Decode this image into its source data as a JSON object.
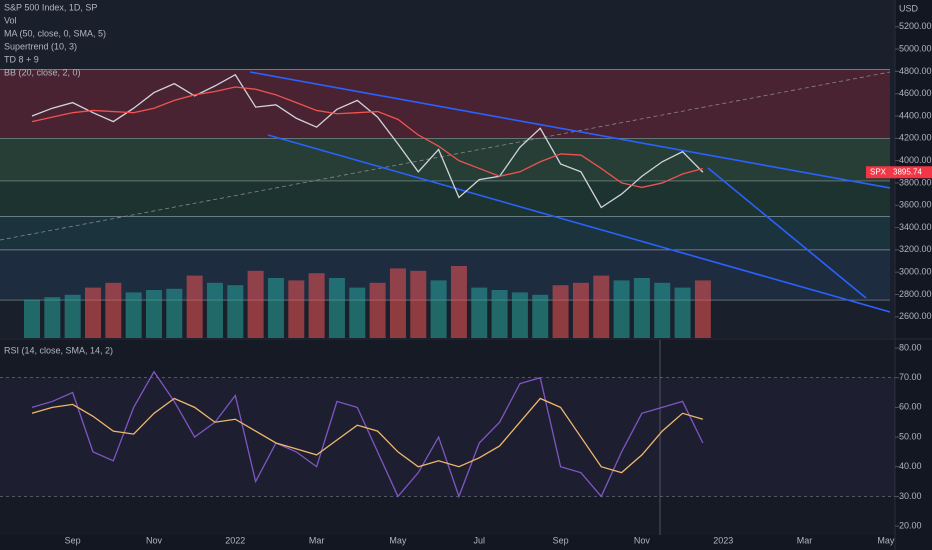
{
  "chart_data": [
    {
      "type": "line",
      "title": "S&P 500 Index, 1D, SP",
      "annotations": [
        "Supertrend (10, 3)",
        "TD 8 + 9",
        "BB (20, close, 2, 0)"
      ],
      "currency": "USD",
      "symbol": "SPX",
      "last_price_label": "3895.74",
      "categories": [
        null,
        null,
        "Sep",
        null,
        null,
        null,
        "Nov",
        null,
        null,
        null,
        "2022",
        null,
        null,
        null,
        "Mar",
        null,
        null,
        null,
        "May",
        null,
        null,
        null,
        "Jul",
        null,
        null,
        null,
        "Sep",
        null,
        null,
        null,
        "Nov",
        null,
        null,
        null,
        "2023",
        null,
        null,
        null,
        "Mar",
        null,
        null,
        null,
        "May"
      ],
      "series": [
        {
          "name": "S&P 500 Index, 1D, SP",
          "color": "#d1d4dc",
          "values": [
            4400,
            4470,
            4520,
            4430,
            4350,
            4470,
            4610,
            4690,
            4580,
            4670,
            4770,
            4480,
            4500,
            4380,
            4300,
            4460,
            4540,
            4390,
            4150,
            3900,
            4100,
            3670,
            3830,
            3860,
            4120,
            4290,
            3970,
            3900,
            3580,
            3700,
            3860,
            3990,
            4080,
            3895.74,
            null,
            null,
            null,
            null,
            null,
            null,
            null,
            null,
            null
          ]
        },
        {
          "name": "MA (50, close, 0, SMA, 5)",
          "color": "#ef5350",
          "values": [
            4350,
            4390,
            4430,
            4450,
            4440,
            4430,
            4470,
            4540,
            4590,
            4620,
            4660,
            4640,
            4590,
            4520,
            4450,
            4420,
            4430,
            4440,
            4370,
            4230,
            4130,
            4000,
            3930,
            3860,
            3900,
            3990,
            4060,
            4050,
            3930,
            3800,
            3760,
            3800,
            3880,
            3930,
            null,
            null,
            null,
            null,
            null,
            null,
            null,
            null,
            null
          ]
        }
      ],
      "volume": {
        "name": "Vol",
        "up_color": "#26a69a",
        "down_color": "#ef5350",
        "values": [
          3.2,
          3.4,
          3.6,
          4.2,
          4.6,
          3.8,
          4.0,
          4.1,
          5.2,
          4.6,
          4.4,
          5.6,
          5.0,
          4.8,
          5.4,
          5.0,
          4.2,
          4.6,
          5.8,
          5.6,
          4.8,
          6.0,
          4.2,
          4.0,
          3.8,
          3.6,
          4.4,
          4.6,
          5.2,
          4.8,
          5.0,
          4.6,
          4.2,
          4.8,
          null,
          null,
          null,
          null,
          null,
          null,
          null,
          null,
          null
        ]
      },
      "levels": [
        4818,
        4200,
        3818,
        3500,
        3200,
        2750
      ],
      "ylim": [
        2410,
        5440
      ],
      "yticks": [
        {
          "value": 5200,
          "label": "5200.00"
        },
        {
          "value": 5000,
          "label": "5000.00"
        },
        {
          "value": 4800,
          "label": "4800.00"
        },
        {
          "value": 4600,
          "label": "4600.00"
        },
        {
          "value": 4400,
          "label": "4400.00"
        },
        {
          "value": 4200,
          "label": "4200.00"
        },
        {
          "value": 4000,
          "label": "4000.00"
        },
        {
          "value": 3800,
          "label": "3800.00"
        },
        {
          "value": 3600,
          "label": "3600.00"
        },
        {
          "value": 3400,
          "label": "3400.00"
        },
        {
          "value": 3200,
          "label": "3200.00"
        },
        {
          "value": 3000,
          "label": "3000.00"
        },
        {
          "value": 2800,
          "label": "2800.00"
        },
        {
          "value": 2600,
          "label": "2600.00"
        }
      ]
    },
    {
      "type": "line",
      "series": [
        {
          "name": "RSI (14, close, SMA, 14, 2)",
          "color": "#7e57c2",
          "values": [
            60,
            62,
            65,
            45,
            42,
            60,
            72,
            62,
            50,
            55,
            64,
            35,
            48,
            45,
            40,
            62,
            60,
            45,
            30,
            38,
            50,
            30,
            48,
            55,
            68,
            70,
            40,
            38,
            30,
            45,
            58,
            60,
            62,
            48,
            null,
            null,
            null,
            null,
            null,
            null,
            null,
            null,
            null
          ]
        },
        {
          "color": "#f0b86b",
          "values": [
            58,
            60,
            61,
            57,
            52,
            51,
            58,
            63,
            60,
            55,
            56,
            52,
            48,
            46,
            44,
            49,
            54,
            52,
            45,
            40,
            42,
            40,
            43,
            47,
            55,
            63,
            60,
            50,
            40,
            38,
            44,
            52,
            58,
            56,
            null,
            null,
            null,
            null,
            null,
            null,
            null,
            null,
            null
          ]
        }
      ],
      "ylim": [
        17,
        82.7
      ],
      "bands": [
        70,
        30
      ],
      "yticks": [
        {
          "value": 80,
          "label": "80.00"
        },
        {
          "value": 70,
          "label": "70.00"
        },
        {
          "value": 60,
          "label": "60.00"
        },
        {
          "value": 50,
          "label": "50.00"
        },
        {
          "value": 40,
          "label": "40.00"
        },
        {
          "value": 30,
          "label": "30.00"
        },
        {
          "value": 20,
          "label": "20.00"
        }
      ]
    }
  ]
}
